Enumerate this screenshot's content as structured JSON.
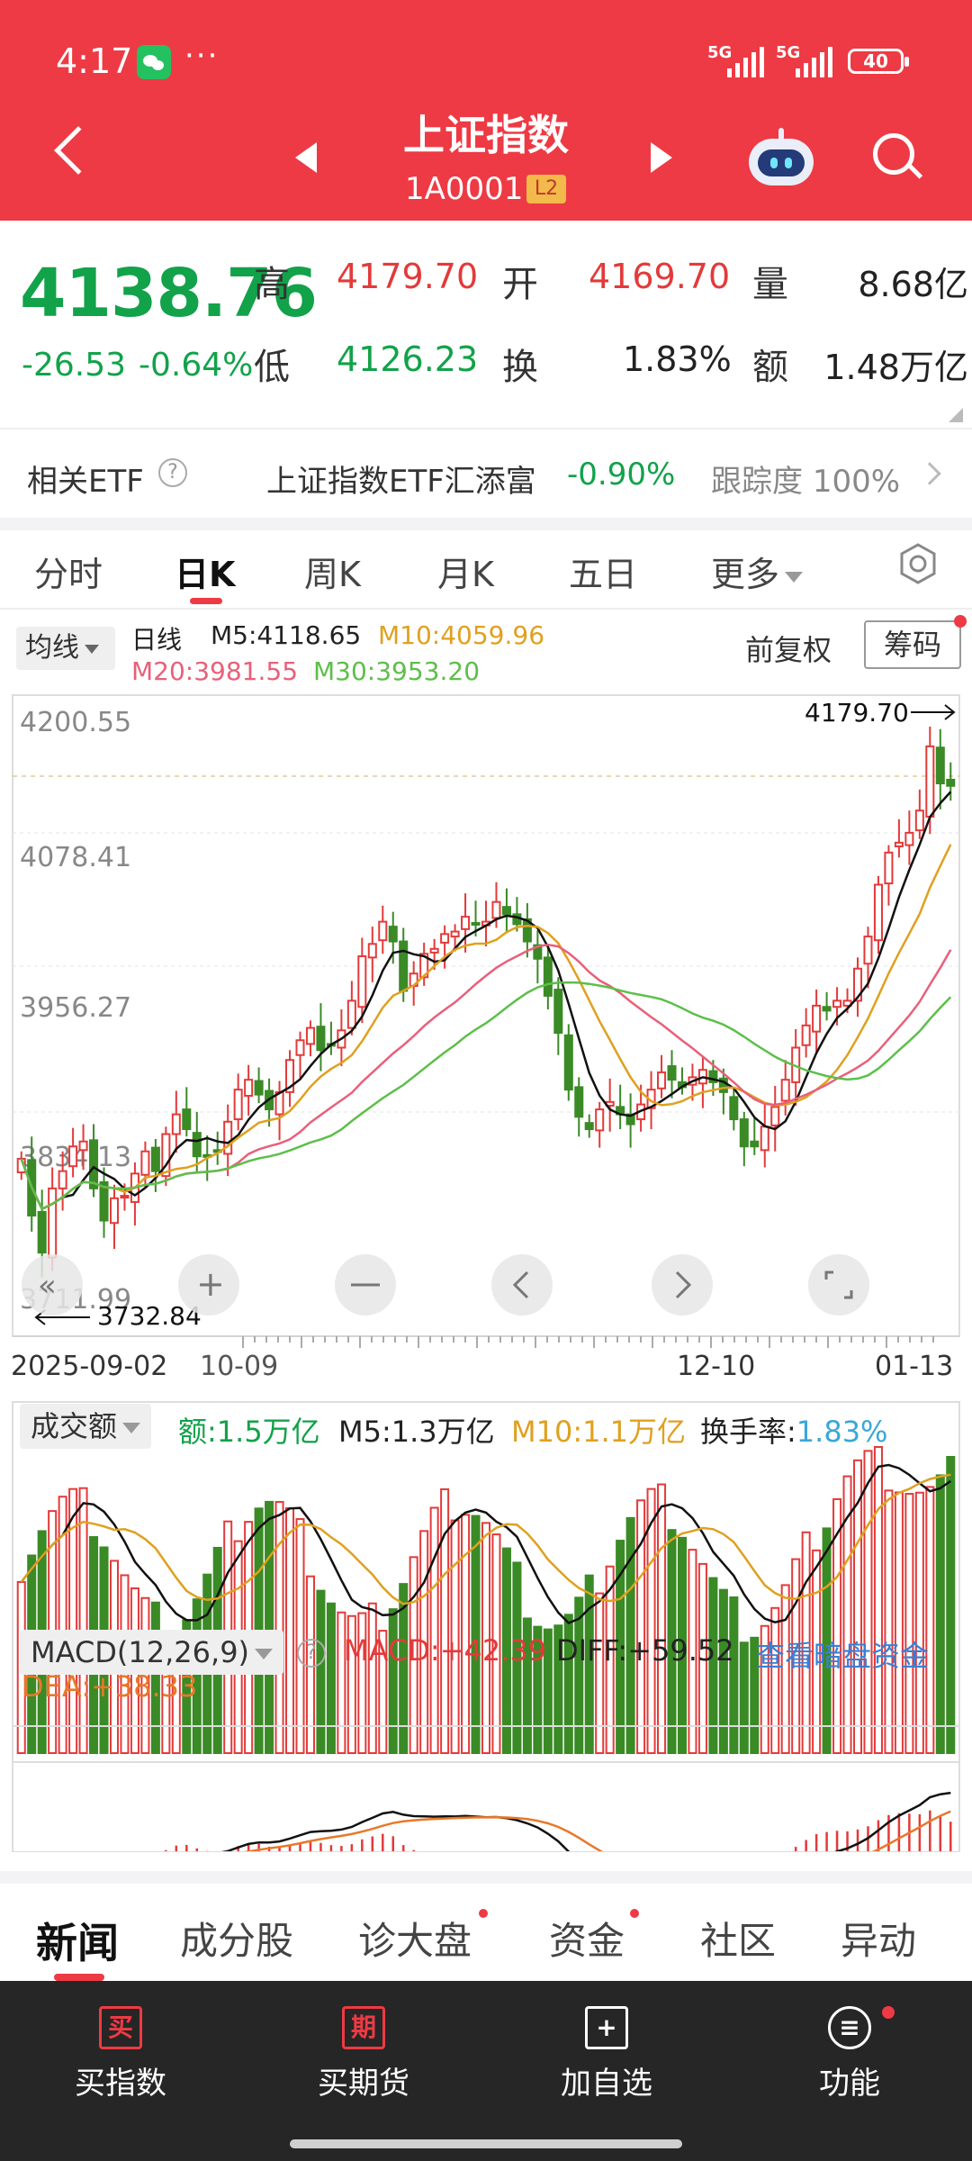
{
  "status_bar": {
    "time": "4:17",
    "dots": "···",
    "sig1": "5G",
    "sig2": "5G",
    "battery": "40"
  },
  "header": {
    "title": "上证指数",
    "code": "1A0001",
    "level": "L2"
  },
  "quote": {
    "price": "4138.76",
    "change": "-26.53",
    "change_pct": "-0.64%",
    "high_label": "高",
    "high": "4179.70",
    "open_label": "开",
    "open": "4169.70",
    "volume_label": "量",
    "volume": "8.68亿",
    "low_label": "低",
    "low": "4126.23",
    "turnover_label": "换",
    "turnover": "1.83%",
    "amount_label": "额",
    "amount": "1.48万亿"
  },
  "etf": {
    "label": "相关ETF",
    "help": "?",
    "name": "上证指数ETF汇添富",
    "pct": "-0.90%",
    "track_label": "跟踪度",
    "track_value": "100%"
  },
  "ktabs": [
    "分时",
    "日K",
    "周K",
    "月K",
    "五日",
    "更多"
  ],
  "ma": {
    "selector": "均线",
    "period": "日线",
    "m5": "M5:4118.65",
    "m10": "M10:4059.96",
    "m20": "M20:3981.55",
    "m30": "M30:3953.20",
    "fq": "前复权",
    "chouma": "筹码"
  },
  "price_axis": {
    "labels": [
      "4200.55",
      "4078.41",
      "3956.27",
      "3834.13",
      "3711.99"
    ],
    "high_mark": "4179.70",
    "low_mark": "3732.84"
  },
  "x_labels": {
    "a": "2025-09-02",
    "b": "10-09",
    "c": "12-10",
    "d": "01-13"
  },
  "volume": {
    "selector": "成交额",
    "amount": "额:1.5万亿",
    "m5": "M5:1.3万亿",
    "m10": "M10:1.1万亿",
    "turnover": "换手率:",
    "turnover_val": "1.83%"
  },
  "macd": {
    "selector": "MACD(12,26,9)",
    "help": "?",
    "macd": "MACD:+42.39",
    "diff": "DIFF:+59.52",
    "link": "查看暗盘资金",
    "dea": "DEA:+38.33"
  },
  "news_tabs": [
    "新闻",
    "成分股",
    "诊大盘",
    "资金",
    "社区",
    "异动"
  ],
  "bottom_nav": [
    {
      "icon": "买",
      "label": "买指数"
    },
    {
      "icon": "期",
      "label": "买期货"
    },
    {
      "icon": "+",
      "label": "加自选"
    },
    {
      "icon": "≡",
      "label": "功能"
    }
  ],
  "colors": {
    "brand_red": "#ee3a44",
    "up": "#e33a3a",
    "down": "#12a24a",
    "ma5": "#111111",
    "ma10": "#e0a020",
    "ma20": "#e8607a",
    "ma30": "#5cbf4a",
    "link": "#3a7fd5"
  },
  "chart_data": {
    "type": "candlestick",
    "series_closes": [
      3836,
      3790,
      3760,
      3812,
      3826,
      3846,
      3850,
      3812,
      3786,
      3804,
      3806,
      3824,
      3842,
      3826,
      3856,
      3872,
      3860,
      3838,
      3838,
      3842,
      3866,
      3892,
      3900,
      3888,
      3876,
      3890,
      3916,
      3932,
      3942,
      3924,
      3928,
      3940,
      3964,
      4000,
      4010,
      4028,
      4012,
      3972,
      3986,
      4002,
      4006,
      4018,
      4020,
      4032,
      4026,
      4028,
      4044,
      4034,
      4026,
      4012,
      3998,
      3968,
      3938,
      3892,
      3870,
      3860,
      3876,
      3882,
      3872,
      3864,
      3880,
      3892,
      3906,
      3900,
      3894,
      3902,
      3908,
      3898,
      3890,
      3868,
      3846,
      3846,
      3862,
      3878,
      3900,
      3926,
      3944,
      3960,
      3956,
      3964,
      3964,
      3990,
      4016,
      4058,
      4084,
      4092,
      4100,
      4118,
      4170,
      4140,
      4138
    ],
    "ylim": [
      3711.99,
      4200.55
    ]
  }
}
